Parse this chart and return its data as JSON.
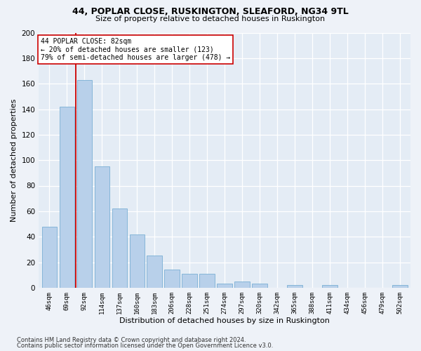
{
  "title": "44, POPLAR CLOSE, RUSKINGTON, SLEAFORD, NG34 9TL",
  "subtitle": "Size of property relative to detached houses in Ruskington",
  "xlabel": "Distribution of detached houses by size in Ruskington",
  "ylabel": "Number of detached properties",
  "categories": [
    "46sqm",
    "69sqm",
    "92sqm",
    "114sqm",
    "137sqm",
    "160sqm",
    "183sqm",
    "206sqm",
    "228sqm",
    "251sqm",
    "274sqm",
    "297sqm",
    "320sqm",
    "342sqm",
    "365sqm",
    "388sqm",
    "411sqm",
    "434sqm",
    "456sqm",
    "479sqm",
    "502sqm"
  ],
  "values": [
    48,
    142,
    163,
    95,
    62,
    42,
    25,
    14,
    11,
    11,
    3,
    5,
    3,
    0,
    2,
    0,
    2,
    0,
    0,
    0,
    2
  ],
  "bar_color": "#b8d0ea",
  "bar_edge_color": "#7aafd4",
  "vline_x": 1.5,
  "vline_color": "#cc0000",
  "annotation_text": "44 POPLAR CLOSE: 82sqm\n← 20% of detached houses are smaller (123)\n79% of semi-detached houses are larger (478) →",
  "annotation_box_color": "#ffffff",
  "annotation_box_edge": "#cc0000",
  "ylim": [
    0,
    200
  ],
  "yticks": [
    0,
    20,
    40,
    60,
    80,
    100,
    120,
    140,
    160,
    180,
    200
  ],
  "footnote1": "Contains HM Land Registry data © Crown copyright and database right 2024.",
  "footnote2": "Contains public sector information licensed under the Open Government Licence v3.0.",
  "bg_color": "#eef2f8",
  "plot_bg_color": "#e4ecf5"
}
